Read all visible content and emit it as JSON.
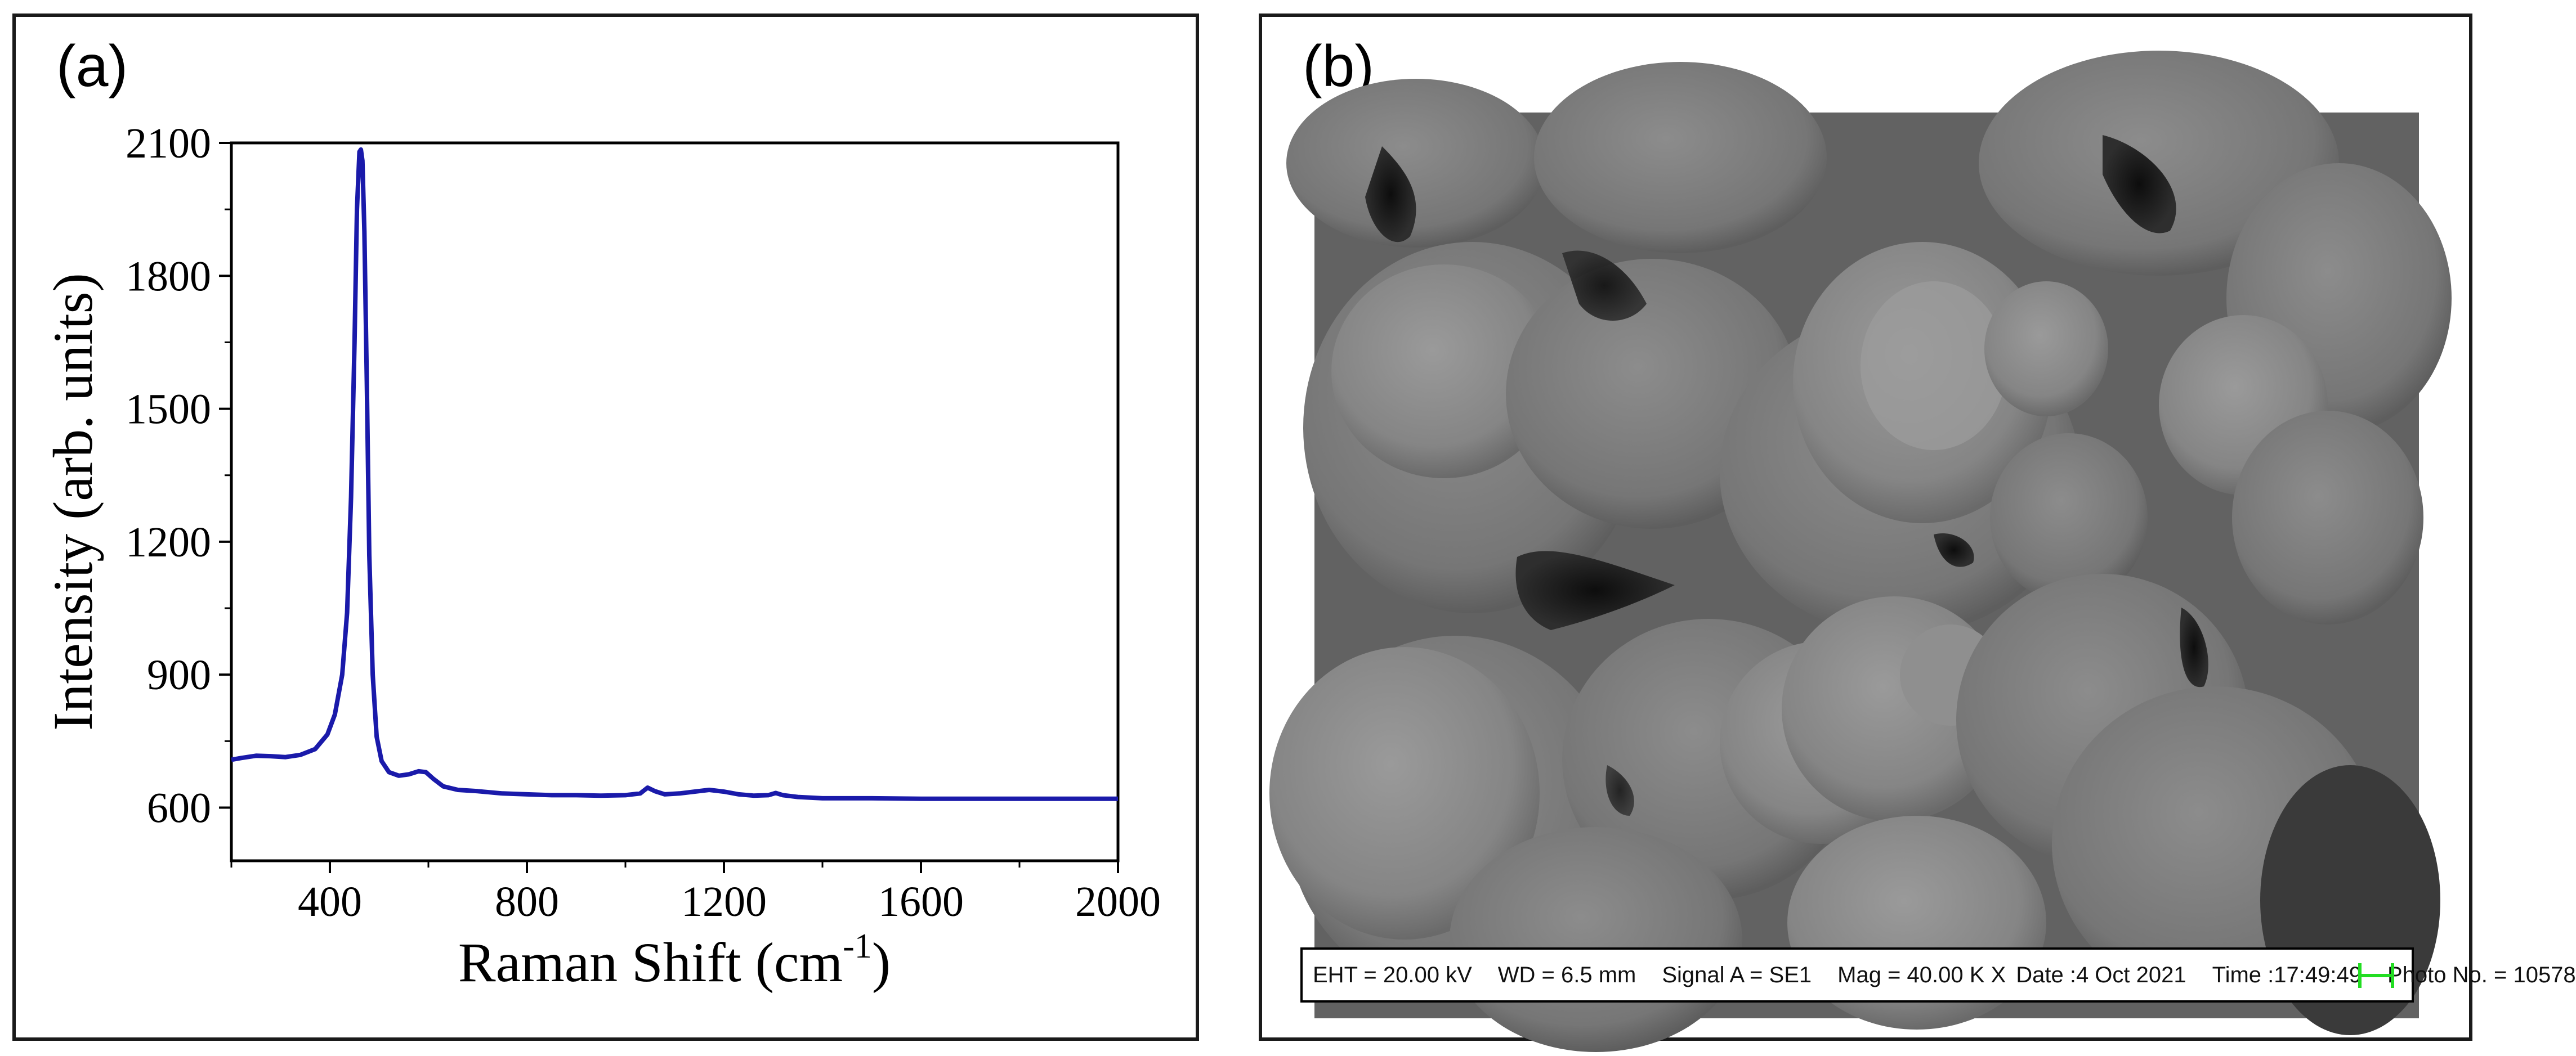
{
  "panel_a": {
    "label": "(a)"
  },
  "panel_b": {
    "label": "(b)",
    "info_bar": {
      "eht": "EHT = 20.00 kV",
      "wd": "WD =  6.5 mm",
      "signal": "Signal A = SE1",
      "mag": "Mag =  40.00 K X",
      "date": "Date :4 Oct 2021",
      "time": "Time :17:49:49",
      "photo": "Photo No. = 10578"
    },
    "scale_marker_color": "#22dd22"
  },
  "chart_data": {
    "type": "line",
    "title": "",
    "xlabel": "Raman Shift (cm",
    "xlabel_sup": "-1",
    "xlabel_end": ")",
    "ylabel": "Intensity (arb. units)",
    "xlim": [
      200,
      2000
    ],
    "ylim": [
      480,
      2100
    ],
    "xticks": [
      400,
      800,
      1200,
      1600,
      2000
    ],
    "yticks": [
      600,
      900,
      1200,
      1500,
      1800,
      2100
    ],
    "line_color": "#1a1aaa",
    "series": [
      {
        "x": [
          200,
          220,
          250,
          280,
          310,
          340,
          370,
          395,
          410,
          425,
          435,
          443,
          450,
          455,
          460,
          463,
          466,
          470,
          475,
          480,
          487,
          495,
          505,
          520,
          540,
          560,
          580,
          595,
          610,
          630,
          660,
          700,
          750,
          800,
          850,
          900,
          950,
          1000,
          1030,
          1045,
          1060,
          1080,
          1110,
          1140,
          1170,
          1200,
          1230,
          1260,
          1290,
          1305,
          1320,
          1350,
          1400,
          1500,
          1600,
          1700,
          1800,
          1900,
          2000
        ],
        "y": [
          708,
          712,
          717,
          716,
          714,
          719,
          732,
          765,
          810,
          900,
          1040,
          1300,
          1650,
          1950,
          2080,
          2085,
          2060,
          1900,
          1560,
          1170,
          900,
          760,
          705,
          680,
          672,
          675,
          682,
          680,
          665,
          648,
          640,
          637,
          632,
          630,
          628,
          628,
          627,
          628,
          632,
          645,
          637,
          630,
          632,
          636,
          640,
          636,
          630,
          627,
          628,
          633,
          628,
          624,
          621,
          621,
          620,
          620,
          620,
          620,
          620
        ]
      }
    ]
  }
}
